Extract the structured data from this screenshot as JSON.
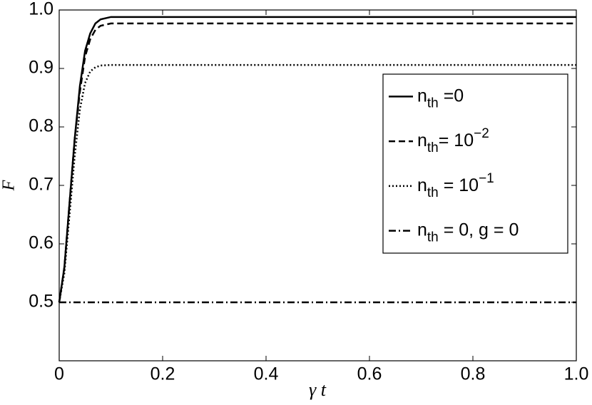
{
  "chart_data": {
    "type": "line",
    "ylabel": "F",
    "xlabel": "γ t",
    "x": [
      0,
      0.01,
      0.02,
      0.03,
      0.04,
      0.05,
      0.06,
      0.07,
      0.08,
      0.1,
      0.15,
      0.2,
      0.4,
      0.6,
      0.8,
      1.0
    ],
    "xlim": [
      0,
      1
    ],
    "ylim": [
      0.4,
      1
    ],
    "xticks": [
      0,
      0.2,
      0.4,
      0.6,
      0.8,
      {
        "value": 1,
        "label": "1.0"
      }
    ],
    "yticks": [
      0.5,
      0.6,
      0.7,
      0.8,
      0.9,
      {
        "value": 1,
        "label": "1.0"
      }
    ],
    "grid": false,
    "legend": "upper right",
    "series": [
      {
        "name": [
          {
            "text": "n"
          },
          {
            "text": "th",
            "sub": true
          },
          {
            "text": " =0"
          }
        ],
        "color": "#000000",
        "dash": "none",
        "values": [
          0.5,
          0.56,
          0.67,
          0.78,
          0.87,
          0.93,
          0.96,
          0.977,
          0.984,
          0.988,
          0.988,
          0.988,
          0.988,
          0.988,
          0.988,
          0.988
        ]
      },
      {
        "name": [
          {
            "text": "n"
          },
          {
            "text": "th",
            "sub": true
          },
          {
            "text": "= 10"
          },
          {
            "text": "−2",
            "sup": true
          }
        ],
        "color": "#000000",
        "dash": "9,5",
        "values": [
          0.5,
          0.56,
          0.67,
          0.78,
          0.86,
          0.92,
          0.95,
          0.966,
          0.973,
          0.977,
          0.977,
          0.977,
          0.977,
          0.977,
          0.977,
          0.977
        ]
      },
      {
        "name": [
          {
            "text": "n"
          },
          {
            "text": "th",
            "sub": true
          },
          {
            "text": " = 10"
          },
          {
            "text": "−1",
            "sup": true
          }
        ],
        "color": "#000000",
        "dash": "2,3",
        "values": [
          0.5,
          0.55,
          0.65,
          0.75,
          0.83,
          0.875,
          0.895,
          0.902,
          0.905,
          0.906,
          0.906,
          0.906,
          0.906,
          0.906,
          0.906,
          0.906
        ]
      },
      {
        "name": [
          {
            "text": "n"
          },
          {
            "text": "th",
            "sub": true
          },
          {
            "text": " = 0, g = 0"
          }
        ],
        "color": "#000000",
        "dash": "10,4,2,4",
        "values": [
          0.5,
          0.5,
          0.5,
          0.5,
          0.5,
          0.5,
          0.5,
          0.5,
          0.5,
          0.5,
          0.5,
          0.5,
          0.5,
          0.5,
          0.5,
          0.5
        ]
      }
    ]
  }
}
